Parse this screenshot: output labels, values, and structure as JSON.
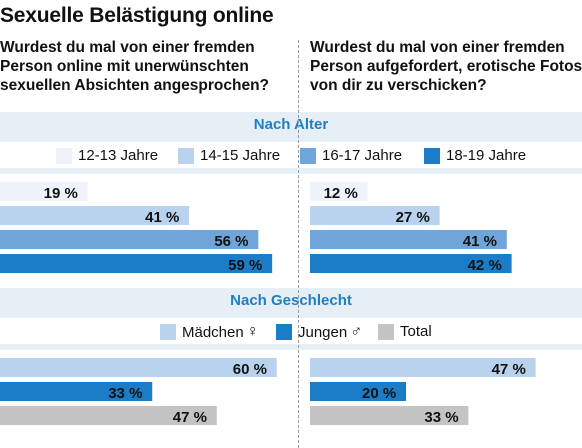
{
  "title": "Sexuelle Belästigung online",
  "questions": {
    "left": "Wurdest du mal von einer fremden Person online mit unerwünschten sexuellen Absichten angesprochen?",
    "right": "Wurdest du mal von einer fremden Person aufgefordert, erotische Fotos von dir zu verschicken?"
  },
  "sections": {
    "age": {
      "title": "Nach Alter",
      "legend": [
        {
          "label": "12-13 Jahre",
          "color": "#eef3fa"
        },
        {
          "label": "14-15 Jahre",
          "color": "#b9d3ee"
        },
        {
          "label": "16-17 Jahre",
          "color": "#6fa5d9"
        },
        {
          "label": "18-19 Jahre",
          "color": "#1b7dc8"
        }
      ]
    },
    "gender": {
      "title": "Nach Geschlecht",
      "legend": [
        {
          "label": "Mädchen",
          "symbol": "♀",
          "color": "#b9d3ee"
        },
        {
          "label": "Jungen",
          "symbol": "♂",
          "color": "#1b7dc8"
        },
        {
          "label": "Total",
          "symbol": "",
          "color": "#c4c4c4"
        }
      ]
    }
  },
  "chart_data": [
    {
      "type": "bar",
      "orientation": "horizontal",
      "group": "Nach Alter",
      "question": "left",
      "categories": [
        "12-13 Jahre",
        "14-15 Jahre",
        "16-17 Jahre",
        "18-19 Jahre"
      ],
      "values": [
        19,
        41,
        56,
        59
      ],
      "labels": [
        "19 %",
        "41 %",
        "56 %",
        "59 %"
      ],
      "colors": [
        "#eef3fa",
        "#b9d3ee",
        "#6fa5d9",
        "#1b7dc8"
      ],
      "xlim": [
        0,
        62
      ]
    },
    {
      "type": "bar",
      "orientation": "horizontal",
      "group": "Nach Alter",
      "question": "right",
      "categories": [
        "12-13 Jahre",
        "14-15 Jahre",
        "16-17 Jahre",
        "18-19 Jahre"
      ],
      "values": [
        12,
        27,
        41,
        42
      ],
      "labels": [
        "12 %",
        "27 %",
        "41 %",
        "42 %"
      ],
      "colors": [
        "#eef3fa",
        "#b9d3ee",
        "#6fa5d9",
        "#1b7dc8"
      ],
      "xlim": [
        0,
        62
      ]
    },
    {
      "type": "bar",
      "orientation": "horizontal",
      "group": "Nach Geschlecht",
      "question": "left",
      "categories": [
        "Mädchen",
        "Jungen",
        "Total"
      ],
      "values": [
        60,
        33,
        47
      ],
      "labels": [
        "60 %",
        "33 %",
        "47 %"
      ],
      "colors": [
        "#b9d3ee",
        "#1b7dc8",
        "#c4c4c4"
      ],
      "xlim": [
        0,
        62
      ]
    },
    {
      "type": "bar",
      "orientation": "horizontal",
      "group": "Nach Geschlecht",
      "question": "right",
      "categories": [
        "Mädchen",
        "Jungen",
        "Total"
      ],
      "values": [
        47,
        20,
        33
      ],
      "labels": [
        "47 %",
        "20 %",
        "33 %"
      ],
      "colors": [
        "#b9d3ee",
        "#1b7dc8",
        "#c4c4c4"
      ],
      "xlim": [
        0,
        62
      ]
    }
  ]
}
